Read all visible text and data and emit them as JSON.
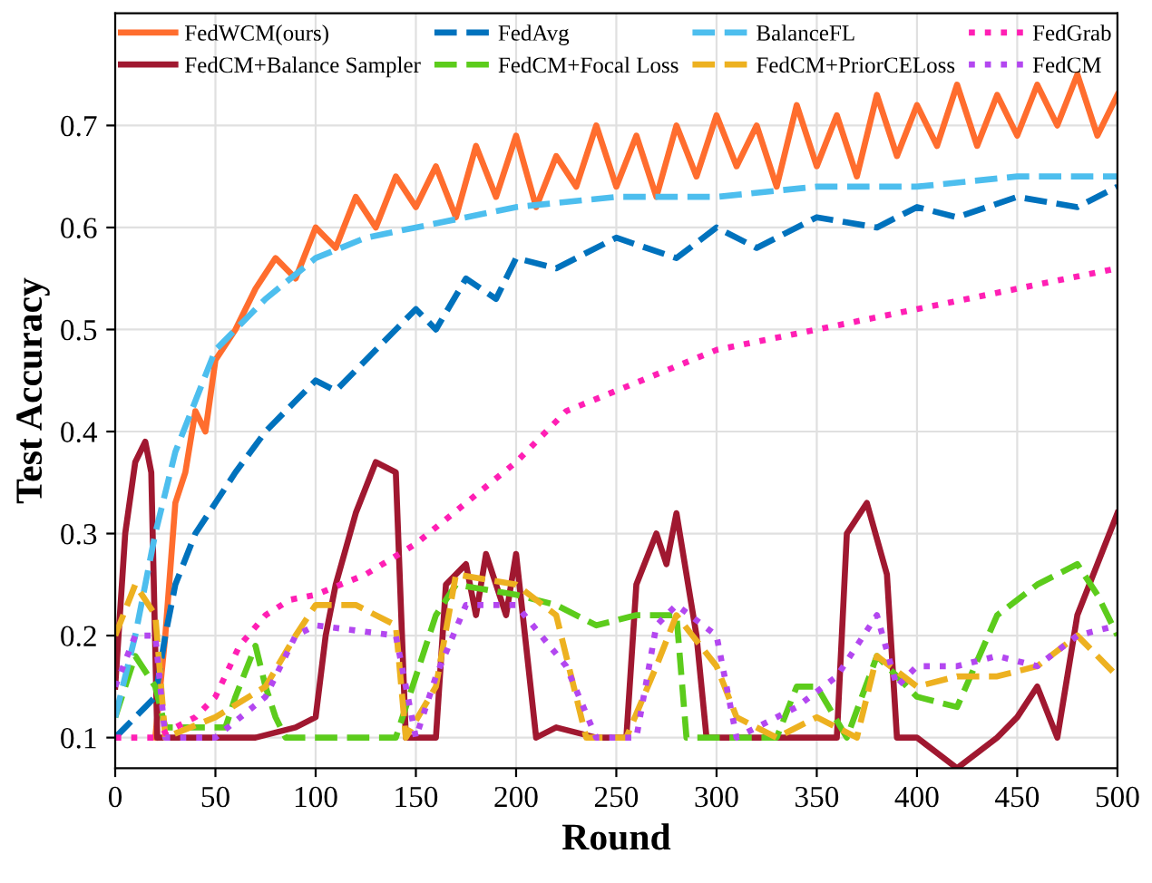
{
  "chart_data": {
    "type": "line",
    "xlabel": "Round",
    "ylabel": "Test Accuracy",
    "xlim": [
      0,
      500
    ],
    "ylim": [
      0.07,
      0.81
    ],
    "xticks": [
      0,
      50,
      100,
      150,
      200,
      250,
      300,
      350,
      400,
      450,
      500
    ],
    "yticks": [
      0.1,
      0.2,
      0.3,
      0.4,
      0.5,
      0.6,
      0.7
    ],
    "grid": true,
    "legend": "top",
    "series": [
      {
        "name": "FedWCM(ours)",
        "color": "#ff6d2e",
        "line_style": "solid",
        "x": [
          20,
          25,
          30,
          35,
          40,
          45,
          50,
          60,
          70,
          80,
          90,
          100,
          110,
          120,
          130,
          140,
          150,
          160,
          170,
          180,
          190,
          200,
          210,
          220,
          230,
          240,
          250,
          260,
          270,
          280,
          290,
          300,
          310,
          320,
          330,
          340,
          350,
          360,
          370,
          380,
          390,
          400,
          410,
          420,
          430,
          440,
          450,
          460,
          470,
          480,
          490,
          500
        ],
        "values": [
          0.1,
          0.2,
          0.33,
          0.36,
          0.42,
          0.4,
          0.47,
          0.5,
          0.54,
          0.57,
          0.55,
          0.6,
          0.58,
          0.63,
          0.6,
          0.65,
          0.62,
          0.66,
          0.61,
          0.68,
          0.63,
          0.69,
          0.62,
          0.67,
          0.64,
          0.7,
          0.64,
          0.69,
          0.63,
          0.7,
          0.65,
          0.71,
          0.66,
          0.7,
          0.64,
          0.72,
          0.66,
          0.71,
          0.65,
          0.73,
          0.67,
          0.72,
          0.68,
          0.74,
          0.68,
          0.73,
          0.69,
          0.74,
          0.7,
          0.75,
          0.69,
          0.73
        ]
      },
      {
        "name": "FedCM+Balance Sampler",
        "color": "#a01830",
        "line_style": "solid",
        "x": [
          0,
          5,
          10,
          15,
          18,
          21,
          30,
          50,
          70,
          90,
          100,
          105,
          110,
          120,
          130,
          140,
          145,
          150,
          160,
          165,
          175,
          180,
          185,
          195,
          200,
          210,
          220,
          240,
          255,
          260,
          270,
          275,
          280,
          290,
          295,
          300,
          320,
          340,
          360,
          365,
          375,
          385,
          390,
          400,
          420,
          440,
          450,
          460,
          470,
          480,
          490,
          500
        ],
        "values": [
          0.15,
          0.3,
          0.37,
          0.39,
          0.36,
          0.1,
          0.1,
          0.1,
          0.1,
          0.11,
          0.12,
          0.2,
          0.25,
          0.32,
          0.37,
          0.36,
          0.1,
          0.1,
          0.1,
          0.25,
          0.27,
          0.22,
          0.28,
          0.22,
          0.28,
          0.1,
          0.11,
          0.1,
          0.1,
          0.25,
          0.3,
          0.27,
          0.32,
          0.2,
          0.1,
          0.1,
          0.1,
          0.1,
          0.1,
          0.3,
          0.33,
          0.26,
          0.1,
          0.1,
          0.07,
          0.1,
          0.12,
          0.15,
          0.1,
          0.22,
          0.27,
          0.32
        ]
      },
      {
        "name": "FedAvg",
        "color": "#0072bd",
        "line_style": "dashed",
        "x": [
          0,
          10,
          20,
          25,
          30,
          40,
          50,
          60,
          75,
          90,
          100,
          110,
          125,
          140,
          150,
          160,
          175,
          190,
          200,
          220,
          250,
          280,
          300,
          320,
          350,
          380,
          400,
          420,
          450,
          480,
          500
        ],
        "values": [
          0.1,
          0.12,
          0.14,
          0.2,
          0.25,
          0.3,
          0.33,
          0.36,
          0.4,
          0.43,
          0.45,
          0.44,
          0.47,
          0.5,
          0.52,
          0.5,
          0.55,
          0.53,
          0.57,
          0.56,
          0.59,
          0.57,
          0.6,
          0.58,
          0.61,
          0.6,
          0.62,
          0.61,
          0.63,
          0.62,
          0.64
        ]
      },
      {
        "name": "FedCM+Focal Loss",
        "color": "#5ccc1c",
        "line_style": "dashed",
        "x": [
          0,
          10,
          20,
          25,
          40,
          55,
          60,
          70,
          75,
          80,
          85,
          100,
          120,
          140,
          160,
          170,
          200,
          220,
          240,
          260,
          280,
          285,
          300,
          330,
          340,
          350,
          365,
          380,
          400,
          420,
          440,
          460,
          470,
          480,
          490,
          500
        ],
        "values": [
          0.12,
          0.18,
          0.15,
          0.11,
          0.11,
          0.11,
          0.14,
          0.19,
          0.15,
          0.12,
          0.1,
          0.1,
          0.1,
          0.1,
          0.22,
          0.25,
          0.24,
          0.23,
          0.21,
          0.22,
          0.22,
          0.1,
          0.1,
          0.1,
          0.15,
          0.15,
          0.1,
          0.18,
          0.14,
          0.13,
          0.22,
          0.25,
          0.26,
          0.27,
          0.24,
          0.2
        ]
      },
      {
        "name": "BalanceFL",
        "color": "#4dbeee",
        "line_style": "dashed",
        "x": [
          0,
          10,
          20,
          30,
          40,
          50,
          75,
          100,
          125,
          150,
          175,
          200,
          250,
          300,
          350,
          400,
          450,
          500
        ],
        "values": [
          0.12,
          0.2,
          0.3,
          0.38,
          0.43,
          0.48,
          0.53,
          0.57,
          0.59,
          0.6,
          0.61,
          0.62,
          0.63,
          0.63,
          0.64,
          0.64,
          0.65,
          0.65
        ]
      },
      {
        "name": "FedCM+PriorCELoss",
        "color": "#edb120",
        "line_style": "dashed",
        "x": [
          0,
          10,
          20,
          25,
          50,
          75,
          90,
          100,
          120,
          140,
          145,
          160,
          170,
          200,
          220,
          235,
          255,
          270,
          280,
          300,
          310,
          330,
          350,
          370,
          380,
          400,
          420,
          440,
          460,
          480,
          500
        ],
        "values": [
          0.2,
          0.25,
          0.22,
          0.1,
          0.12,
          0.15,
          0.2,
          0.23,
          0.23,
          0.21,
          0.1,
          0.15,
          0.26,
          0.25,
          0.22,
          0.1,
          0.1,
          0.17,
          0.22,
          0.17,
          0.12,
          0.1,
          0.12,
          0.1,
          0.18,
          0.15,
          0.16,
          0.16,
          0.17,
          0.2,
          0.16
        ]
      },
      {
        "name": "FedGrab",
        "color": "#ff1fb4",
        "line_style": "dotted",
        "x": [
          0,
          20,
          30,
          40,
          50,
          62,
          75,
          87,
          100,
          125,
          150,
          175,
          200,
          225,
          250,
          275,
          300,
          325,
          350,
          375,
          400,
          425,
          450,
          475,
          500
        ],
        "values": [
          0.1,
          0.1,
          0.11,
          0.12,
          0.14,
          0.19,
          0.22,
          0.235,
          0.24,
          0.26,
          0.29,
          0.33,
          0.37,
          0.42,
          0.44,
          0.46,
          0.48,
          0.49,
          0.5,
          0.51,
          0.52,
          0.53,
          0.54,
          0.55,
          0.56
        ]
      },
      {
        "name": "FedCM",
        "color": "#b347f0",
        "line_style": "dotted",
        "x": [
          0,
          10,
          20,
          25,
          50,
          75,
          90,
          100,
          140,
          150,
          160,
          175,
          200,
          225,
          240,
          260,
          270,
          280,
          300,
          310,
          340,
          360,
          380,
          390,
          400,
          420,
          440,
          460,
          480,
          500
        ],
        "values": [
          0.15,
          0.2,
          0.2,
          0.1,
          0.1,
          0.14,
          0.2,
          0.21,
          0.2,
          0.1,
          0.16,
          0.23,
          0.23,
          0.17,
          0.1,
          0.1,
          0.21,
          0.23,
          0.2,
          0.1,
          0.13,
          0.16,
          0.22,
          0.15,
          0.17,
          0.17,
          0.18,
          0.17,
          0.2,
          0.21
        ]
      }
    ]
  }
}
